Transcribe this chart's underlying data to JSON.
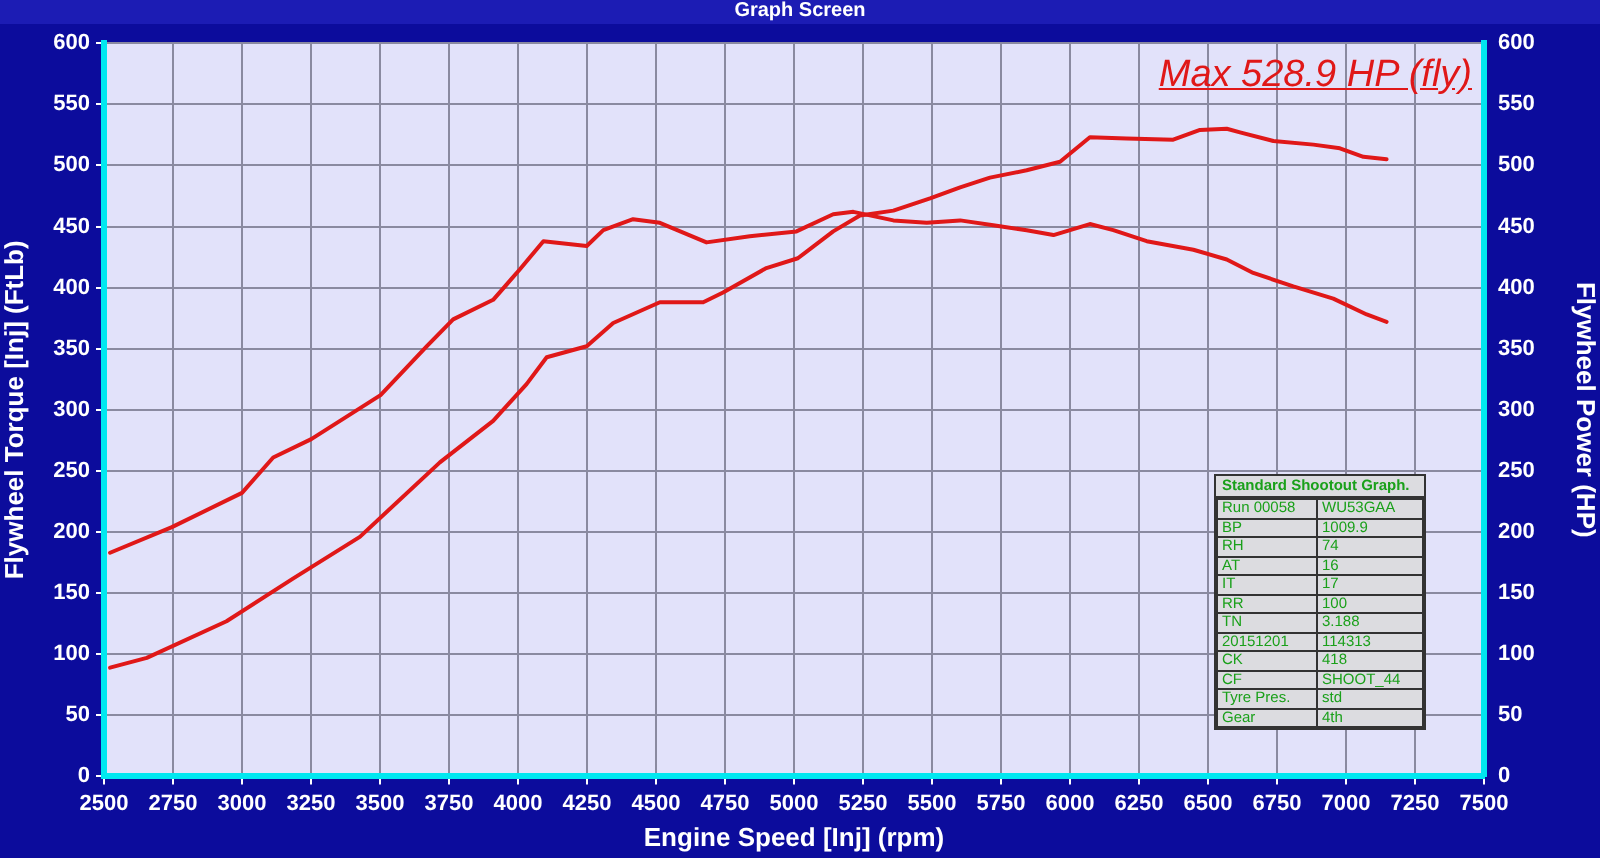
{
  "chart_data": {
    "type": "line",
    "title": "Graph Screen",
    "xlabel": "Engine Speed [Inj] (rpm)",
    "ylabel": "Flywheel Torque [Inj] (FtLb)",
    "y2label": "Flywheel Power (HP)",
    "annotations": [
      "Max 528.9 HP (fly)",
      "Standard Shootout Graph.",
      "Run 00058",
      "WU53GAA",
      "BP",
      "1009.9",
      "RH",
      "74",
      "AT",
      "16",
      "IT",
      "17",
      "RR",
      "100",
      "TN",
      "3.188",
      "20151201",
      "114313",
      "CK",
      "418",
      "CF",
      "SHOOT_44",
      "Tyre Pres.",
      "std",
      "Gear",
      "4th"
    ],
    "xlim": [
      2500,
      7500
    ],
    "xticks": [
      2500,
      2750,
      3000,
      3250,
      3500,
      3750,
      4000,
      4250,
      4500,
      4750,
      5000,
      5250,
      5500,
      5750,
      6000,
      6250,
      6500,
      6750,
      7000,
      7250,
      7500
    ],
    "ylim": [
      0,
      600
    ],
    "yticks": [
      0,
      50,
      100,
      150,
      200,
      250,
      300,
      350,
      400,
      450,
      500,
      550,
      600
    ],
    "y2lim": [
      0,
      600
    ],
    "y2ticks": [
      0,
      50,
      100,
      150,
      200,
      250,
      300,
      350,
      400,
      450,
      500,
      550,
      600
    ],
    "grid": true,
    "marker": "none",
    "line_style": "solid",
    "series": [
      {
        "color": "#e01818",
        "x": [
          2522,
          2746,
          3000,
          3113,
          3251,
          3502,
          3669,
          3765,
          3910,
          4007,
          4092,
          4249,
          4309,
          4417,
          4514,
          4683,
          4840,
          5009,
          5142,
          5215,
          5360,
          5481,
          5602,
          5722,
          5843,
          5940,
          6072,
          6157,
          6278,
          6447,
          6568,
          6664,
          6809,
          6954,
          7075,
          7147
        ],
        "values": [
          183,
          204,
          232,
          261,
          276,
          312,
          352,
          374,
          390,
          415,
          438,
          434,
          447,
          456,
          453,
          437,
          442,
          446,
          460,
          462,
          455,
          453,
          455,
          451,
          447,
          443,
          452,
          447,
          438,
          431,
          423,
          412,
          401,
          391,
          378,
          372
        ]
      },
      {
        "color": "#e01818",
        "axis": "y2",
        "x": [
          2522,
          2655,
          2944,
          3186,
          3427,
          3717,
          3910,
          4031,
          4104,
          4249,
          4345,
          4514,
          4671,
          4743,
          4900,
          5014,
          5142,
          5239,
          5360,
          5493,
          5602,
          5710,
          5843,
          5964,
          6072,
          6205,
          6374,
          6471,
          6568,
          6616,
          6737,
          6882,
          6978,
          7063,
          7147
        ],
        "values": [
          89,
          97,
          127,
          162,
          196,
          257,
          291,
          321,
          343,
          352,
          371,
          388,
          388,
          396,
          416,
          424,
          446,
          459,
          463,
          473,
          482,
          490,
          496,
          503,
          523,
          522,
          521,
          529,
          530,
          527,
          520,
          517,
          514,
          507,
          505
        ]
      }
    ]
  }
}
